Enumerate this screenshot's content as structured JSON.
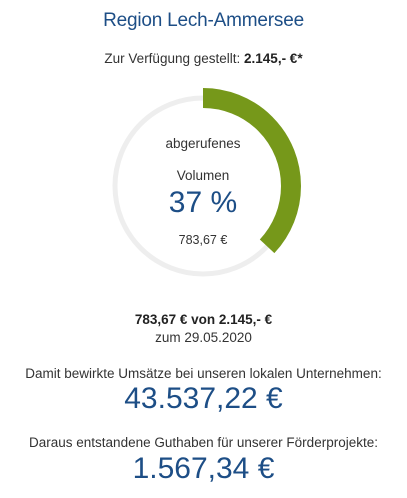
{
  "header": {
    "title": "Region Lech-Ammersee"
  },
  "budget": {
    "available_label": "Zur Verfügung gestellt:",
    "available_value": "2.145,- €*"
  },
  "gauge": {
    "label_line1": "abgerufenes",
    "label_line2": "Volumen",
    "percent_text": "37 %",
    "percent_value": 37,
    "amount_text": "783,67 €",
    "colors": {
      "fill": "#76981a",
      "track": "#eeeeee"
    }
  },
  "summary": {
    "progress_text": "783,67 € von 2.145,- €",
    "date_text": "zum 29.05.2020"
  },
  "revenue": {
    "label": "Damit bewirkte Umsätze bei unseren lokalen Unternehmen:",
    "value": "43.537,22 €"
  },
  "credit": {
    "label": "Daraus entstandene Guthaben für unserer Förderprojekte:",
    "value": "1.567,34 €"
  },
  "colors": {
    "accent": "#1d4e86"
  }
}
